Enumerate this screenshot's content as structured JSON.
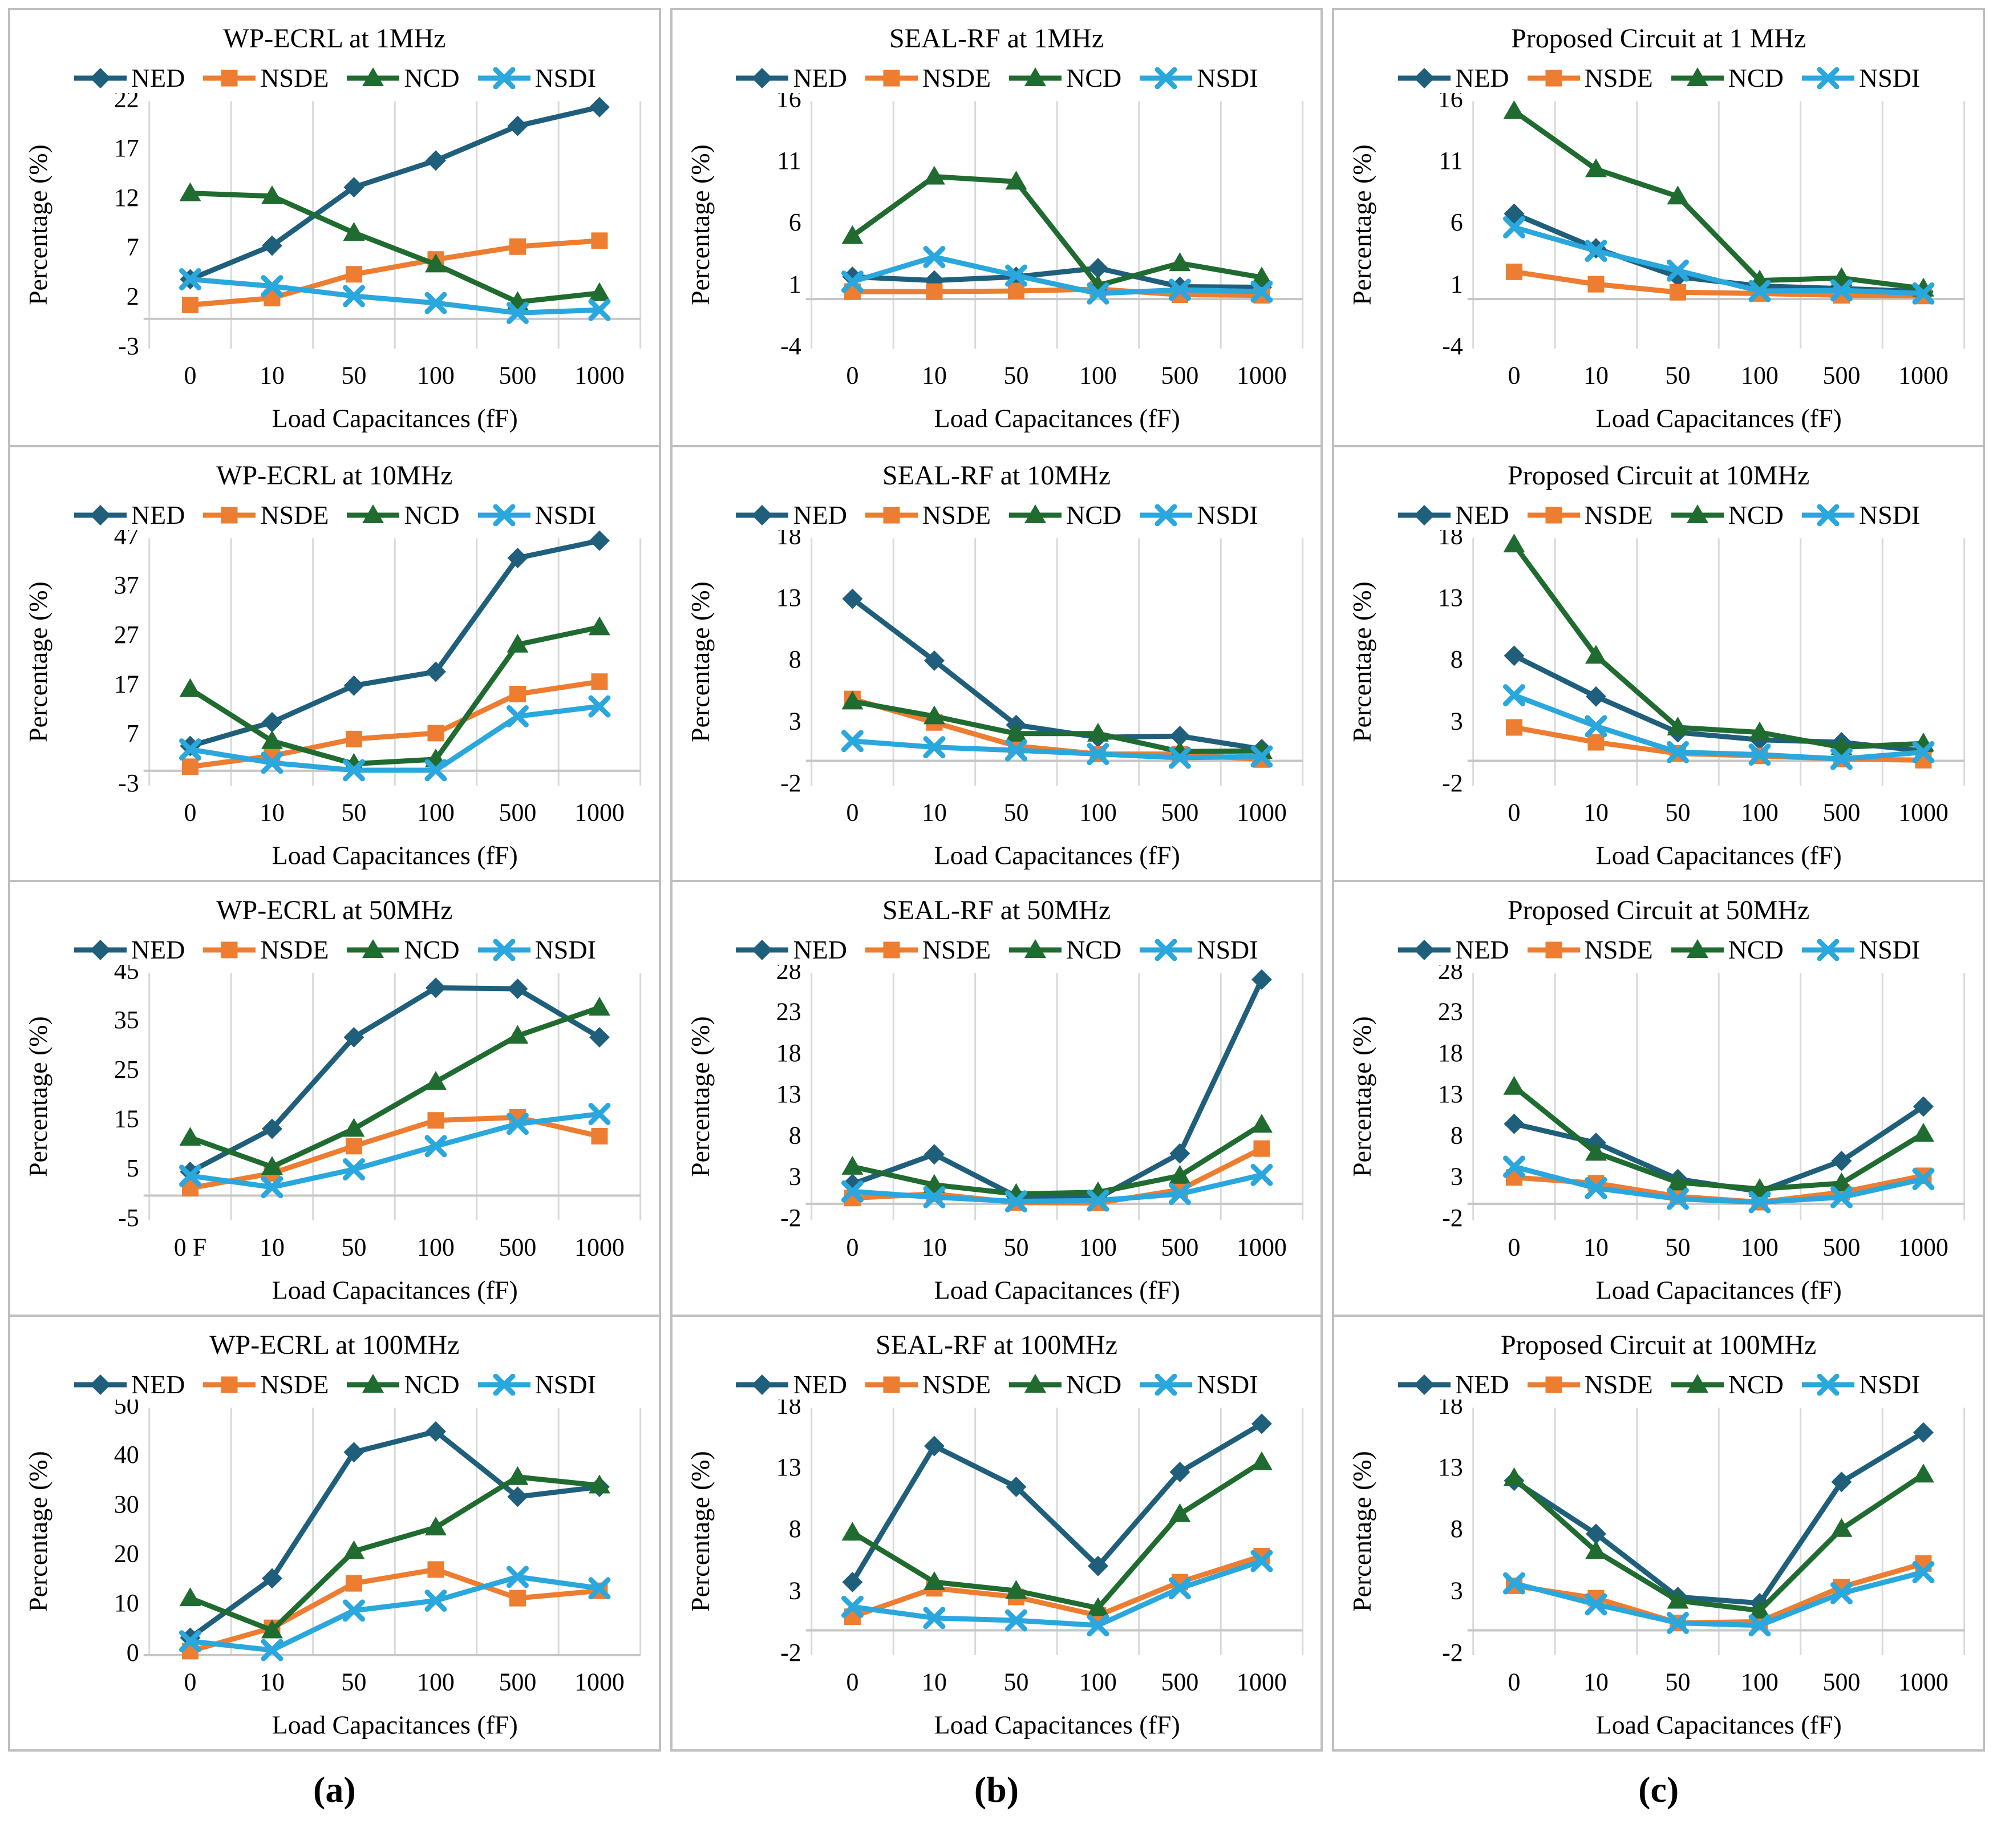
{
  "figure": {
    "captions": [
      "(a)",
      "(b)",
      "(c)"
    ],
    "xlabel": "Load Capacitances (fF)",
    "ylabel": "Percentage (%)",
    "series_defs": [
      {
        "name": "NED",
        "color": "#1F5F7B",
        "marker": "diamond"
      },
      {
        "name": "NSDE",
        "color": "#ED7D31",
        "marker": "square"
      },
      {
        "name": "NCD",
        "color": "#206B30",
        "marker": "triangle"
      },
      {
        "name": "NSDI",
        "color": "#2AA7DC",
        "marker": "x"
      }
    ],
    "grid_color": "#D9D9D9",
    "axis_color": "#C6C6C6",
    "border_color": "#BFBFBF"
  },
  "chart_data": [
    {
      "type": "line",
      "title": "WP-ECRL at 1MHz",
      "categories": [
        "0",
        "10",
        "50",
        "100",
        "500",
        "1000"
      ],
      "ylim": [
        -3,
        22
      ],
      "yticks": [
        -3,
        2,
        7,
        12,
        17,
        22
      ],
      "xlabel": "Load Capacitances (fF)",
      "ylabel": "Percentage (%)",
      "series": [
        {
          "name": "NED",
          "values": [
            4.0,
            7.4,
            13.3,
            16.0,
            19.5,
            21.4
          ]
        },
        {
          "name": "NSDE",
          "values": [
            1.4,
            2.1,
            4.5,
            6.0,
            7.3,
            7.9
          ]
        },
        {
          "name": "NCD",
          "values": [
            12.7,
            12.4,
            8.7,
            5.5,
            1.7,
            2.6
          ]
        },
        {
          "name": "NSDI",
          "values": [
            4.0,
            3.3,
            2.3,
            1.6,
            0.6,
            0.9
          ]
        }
      ]
    },
    {
      "type": "line",
      "title": "SEAL-RF at 1MHz",
      "categories": [
        "0",
        "10",
        "50",
        "100",
        "500",
        "1000"
      ],
      "ylim": [
        -4,
        16
      ],
      "yticks": [
        -4,
        1,
        6,
        11,
        16
      ],
      "xlabel": "Load Capacitances (fF)",
      "ylabel": "Percentage (%)",
      "series": [
        {
          "name": "NED",
          "values": [
            1.8,
            1.5,
            1.8,
            2.5,
            1.0,
            0.95
          ]
        },
        {
          "name": "NSDE",
          "values": [
            0.6,
            0.6,
            0.65,
            0.8,
            0.35,
            0.3
          ]
        },
        {
          "name": "NCD",
          "values": [
            5.1,
            9.9,
            9.5,
            1.1,
            2.9,
            1.75
          ]
        },
        {
          "name": "NSDI",
          "values": [
            1.4,
            3.4,
            1.9,
            0.45,
            0.75,
            0.6
          ]
        }
      ]
    },
    {
      "type": "line",
      "title": "Proposed Circuit at 1 MHz",
      "categories": [
        "0",
        "10",
        "50",
        "100",
        "500",
        "1000"
      ],
      "ylim": [
        -4,
        16
      ],
      "yticks": [
        -4,
        1,
        6,
        11,
        16
      ],
      "xlabel": "Load Capacitances (fF)",
      "ylabel": "Percentage (%)",
      "series": [
        {
          "name": "NED",
          "values": [
            6.9,
            4.1,
            1.8,
            1.05,
            0.85,
            0.6
          ]
        },
        {
          "name": "NSDE",
          "values": [
            2.2,
            1.2,
            0.55,
            0.45,
            0.3,
            0.25
          ]
        },
        {
          "name": "NCD",
          "values": [
            15.2,
            10.5,
            8.3,
            1.5,
            1.7,
            0.85
          ]
        },
        {
          "name": "NSDI",
          "values": [
            5.8,
            3.9,
            2.3,
            0.65,
            0.7,
            0.45
          ]
        }
      ]
    },
    {
      "type": "line",
      "title": "WP-ECRL at 10MHz",
      "categories": [
        "0",
        "10",
        "50",
        "100",
        "500",
        "1000"
      ],
      "ylim": [
        -3,
        47
      ],
      "yticks": [
        -3,
        7,
        17,
        27,
        37,
        47
      ],
      "xlabel": "Load Capacitances (fF)",
      "ylabel": "Percentage (%)",
      "series": [
        {
          "name": "NED",
          "values": [
            5.0,
            9.8,
            17.2,
            20.0,
            43.0,
            46.5
          ]
        },
        {
          "name": "NSDE",
          "values": [
            0.8,
            3.0,
            6.4,
            7.6,
            15.5,
            18.0
          ]
        },
        {
          "name": "NCD",
          "values": [
            16.5,
            6.0,
            1.4,
            2.3,
            25.5,
            29.0
          ]
        },
        {
          "name": "NSDI",
          "values": [
            4.3,
            1.6,
            0.1,
            0.1,
            11.0,
            13.0
          ]
        }
      ]
    },
    {
      "type": "line",
      "title": "SEAL-RF at 10MHz",
      "categories": [
        "0",
        "10",
        "50",
        "100",
        "500",
        "1000"
      ],
      "ylim": [
        -2,
        18
      ],
      "yticks": [
        -2,
        3,
        8,
        13,
        18
      ],
      "xlabel": "Load Capacitances (fF)",
      "ylabel": "Percentage (%)",
      "series": [
        {
          "name": "NED",
          "values": [
            13.1,
            8.1,
            2.9,
            1.9,
            2.0,
            0.95
          ]
        },
        {
          "name": "NSDE",
          "values": [
            5.0,
            3.1,
            1.2,
            0.55,
            0.55,
            0.1
          ]
        },
        {
          "name": "NCD",
          "values": [
            4.8,
            3.6,
            2.2,
            2.2,
            0.75,
            0.8
          ]
        },
        {
          "name": "NSDI",
          "values": [
            1.6,
            1.1,
            0.85,
            0.55,
            0.25,
            0.35
          ]
        }
      ]
    },
    {
      "type": "line",
      "title": "Proposed Circuit at 10MHz",
      "categories": [
        "0",
        "10",
        "50",
        "100",
        "500",
        "1000"
      ],
      "ylim": [
        -2,
        18
      ],
      "yticks": [
        -2,
        3,
        8,
        13,
        18
      ],
      "xlabel": "Load Capacitances (fF)",
      "ylabel": "Percentage (%)",
      "series": [
        {
          "name": "NED",
          "values": [
            8.5,
            5.2,
            2.3,
            1.7,
            1.5,
            0.8
          ]
        },
        {
          "name": "NSDE",
          "values": [
            2.7,
            1.5,
            0.6,
            0.4,
            0.15,
            0.05
          ]
        },
        {
          "name": "NCD",
          "values": [
            17.5,
            8.5,
            2.7,
            2.3,
            1.1,
            1.4
          ]
        },
        {
          "name": "NSDI",
          "values": [
            5.3,
            2.8,
            0.7,
            0.5,
            0.15,
            0.7
          ]
        }
      ]
    },
    {
      "type": "line",
      "title": "WP-ECRL at 50MHz",
      "categories": [
        "0 F",
        "10",
        "50",
        "100",
        "500",
        "1000"
      ],
      "ylim": [
        -5,
        45
      ],
      "yticks": [
        -5,
        5,
        15,
        25,
        35,
        45
      ],
      "xlabel": "Load Capacitances (fF)",
      "ylabel": "Percentage (%)",
      "series": [
        {
          "name": "NED",
          "values": [
            4.8,
            13.5,
            32.0,
            42.0,
            41.8,
            32.0
          ]
        },
        {
          "name": "NSDE",
          "values": [
            1.5,
            4.5,
            10.0,
            15.2,
            15.8,
            12.0
          ]
        },
        {
          "name": "NCD",
          "values": [
            11.7,
            5.8,
            13.5,
            23.0,
            32.3,
            38.0
          ]
        },
        {
          "name": "NSDI",
          "values": [
            4.0,
            1.7,
            5.3,
            10.0,
            14.5,
            16.5
          ]
        }
      ]
    },
    {
      "type": "line",
      "title": "SEAL-RF at 50MHz",
      "categories": [
        "0",
        "10",
        "50",
        "100",
        "500",
        "1000"
      ],
      "ylim": [
        -2,
        28
      ],
      "yticks": [
        -2,
        3,
        8,
        13,
        18,
        23,
        28
      ],
      "xlabel": "Load Capacitances (fF)",
      "ylabel": "Percentage (%)",
      "series": [
        {
          "name": "NED",
          "values": [
            2.4,
            6.0,
            0.9,
            0.7,
            6.1,
            27.2
          ]
        },
        {
          "name": "NSDE",
          "values": [
            0.7,
            1.2,
            0.15,
            0.1,
            1.7,
            6.7
          ]
        },
        {
          "name": "NCD",
          "values": [
            4.5,
            2.3,
            1.2,
            1.4,
            3.4,
            9.6
          ]
        },
        {
          "name": "NSDI",
          "values": [
            1.5,
            0.8,
            0.3,
            0.4,
            1.2,
            3.5
          ]
        }
      ]
    },
    {
      "type": "line",
      "title": "Proposed Circuit at 50MHz",
      "categories": [
        "0",
        "10",
        "50",
        "100",
        "500",
        "1000"
      ],
      "ylim": [
        -2,
        28
      ],
      "yticks": [
        -2,
        3,
        8,
        13,
        18,
        23,
        28
      ],
      "xlabel": "Load Capacitances (fF)",
      "ylabel": "Percentage (%)",
      "series": [
        {
          "name": "NED",
          "values": [
            9.7,
            7.4,
            3.0,
            1.5,
            5.2,
            11.8
          ]
        },
        {
          "name": "NSDE",
          "values": [
            3.2,
            2.5,
            0.9,
            0.2,
            1.4,
            3.4
          ]
        },
        {
          "name": "NCD",
          "values": [
            14.2,
            6.2,
            2.6,
            1.8,
            2.5,
            8.5
          ]
        },
        {
          "name": "NSDI",
          "values": [
            4.5,
            1.9,
            0.6,
            0.2,
            0.8,
            3.0
          ]
        }
      ]
    },
    {
      "type": "line",
      "title": "WP-ECRL at 100MHz",
      "categories": [
        "0",
        "10",
        "50",
        "100",
        "500",
        "1000"
      ],
      "ylim": [
        0,
        50
      ],
      "yticks": [
        0,
        10,
        20,
        30,
        40,
        50
      ],
      "xlabel": "Load Capacitances (fF)",
      "ylabel": "Percentage (%)",
      "series": [
        {
          "name": "NED",
          "values": [
            3.5,
            15.5,
            41.0,
            45.2,
            32.0,
            34.0
          ]
        },
        {
          "name": "NSDE",
          "values": [
            0.8,
            5.5,
            14.5,
            17.3,
            11.5,
            13.0
          ]
        },
        {
          "name": "NCD",
          "values": [
            11.5,
            5.0,
            21.0,
            25.8,
            36.0,
            34.3
          ]
        },
        {
          "name": "NSDI",
          "values": [
            2.8,
            1.0,
            9.0,
            11.0,
            15.8,
            13.5
          ]
        }
      ]
    },
    {
      "type": "line",
      "title": "SEAL-RF at 100MHz",
      "categories": [
        "0",
        "10",
        "50",
        "100",
        "500",
        "1000"
      ],
      "ylim": [
        -2,
        18
      ],
      "yticks": [
        -2,
        3,
        8,
        13,
        18
      ],
      "xlabel": "Load Capacitances (fF)",
      "ylabel": "Percentage (%)",
      "series": [
        {
          "name": "NED",
          "values": [
            3.9,
            14.9,
            11.6,
            5.2,
            12.8,
            16.7
          ]
        },
        {
          "name": "NSDE",
          "values": [
            1.1,
            3.4,
            2.7,
            1.2,
            3.9,
            6.0
          ]
        },
        {
          "name": "NCD",
          "values": [
            7.9,
            3.9,
            3.2,
            1.8,
            9.4,
            13.6
          ]
        },
        {
          "name": "NSDI",
          "values": [
            1.9,
            1.0,
            0.8,
            0.4,
            3.4,
            5.6
          ]
        }
      ]
    },
    {
      "type": "line",
      "title": "Proposed Circuit at 100MHz",
      "categories": [
        "0",
        "10",
        "50",
        "100",
        "500",
        "1000"
      ],
      "ylim": [
        -2,
        18
      ],
      "yticks": [
        -2,
        3,
        8,
        13,
        18
      ],
      "xlabel": "Load Capacitances (fF)",
      "ylabel": "Percentage (%)",
      "series": [
        {
          "name": "NED",
          "values": [
            12.1,
            7.8,
            2.7,
            2.2,
            12.0,
            16.0
          ]
        },
        {
          "name": "NSDE",
          "values": [
            3.6,
            2.6,
            0.6,
            0.7,
            3.5,
            5.4
          ]
        },
        {
          "name": "NCD",
          "values": [
            12.3,
            6.4,
            2.4,
            1.6,
            8.2,
            12.6
          ]
        },
        {
          "name": "NSDI",
          "values": [
            3.8,
            2.1,
            0.6,
            0.4,
            3.0,
            4.7
          ]
        }
      ]
    }
  ]
}
